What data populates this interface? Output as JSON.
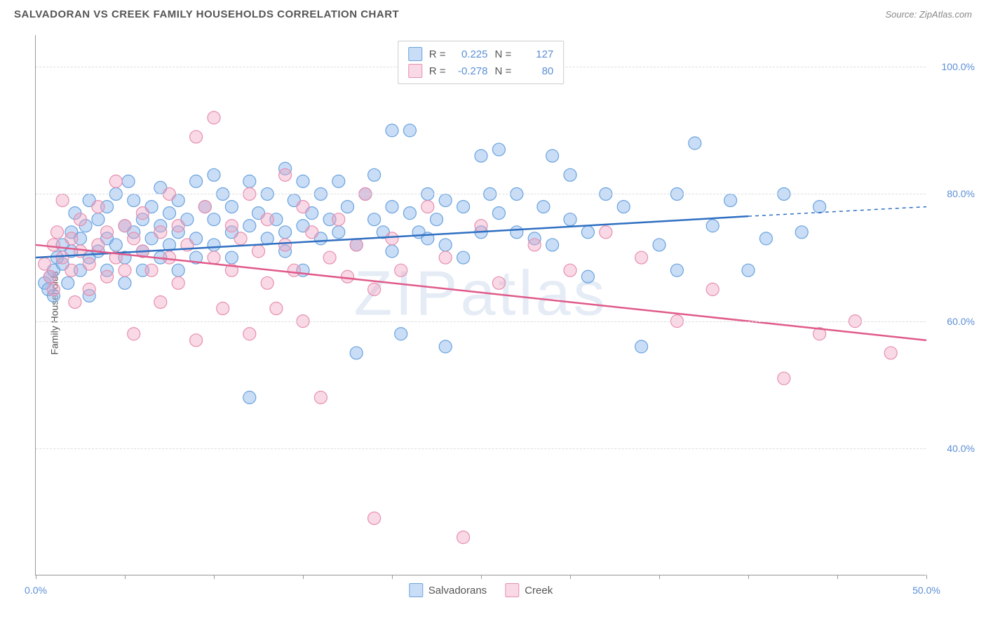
{
  "header": {
    "title": "SALVADORAN VS CREEK FAMILY HOUSEHOLDS CORRELATION CHART",
    "source": "Source: ZipAtlas.com"
  },
  "chart": {
    "type": "scatter",
    "watermark": "ZIPatlas",
    "y_label": "Family Households",
    "xlim": [
      0,
      50
    ],
    "ylim": [
      20,
      105
    ],
    "x_ticks_percent": [
      0,
      50
    ],
    "x_tick_labels": [
      "0.0%",
      "50.0%"
    ],
    "x_minor_ticks": [
      5,
      10,
      15,
      20,
      25,
      30,
      35,
      40,
      45
    ],
    "y_gridlines": [
      40,
      60,
      80,
      100
    ],
    "y_tick_labels": [
      "40.0%",
      "60.0%",
      "80.0%",
      "100.0%"
    ],
    "background_color": "#ffffff",
    "grid_color": "#dddddd",
    "axis_color": "#999999",
    "tick_label_color": "#5b8fd6",
    "marker_radius": 9,
    "marker_stroke_width": 1.2,
    "trend_line_width": 2.5,
    "series": [
      {
        "name": "Salvadorans",
        "fill_color": "rgba(135,180,235,0.45)",
        "stroke_color": "#6aa3de",
        "line_color": "#2f6fc1",
        "R": "0.225",
        "N": "127",
        "trend": {
          "x1": 0,
          "y1": 70,
          "x2": 40,
          "y2": 76.5,
          "dash_to_x": 50,
          "dash_to_y": 78
        },
        "points": [
          [
            0.5,
            66
          ],
          [
            0.7,
            65
          ],
          [
            0.8,
            67
          ],
          [
            1,
            68
          ],
          [
            1,
            64
          ],
          [
            1.2,
            70
          ],
          [
            1.5,
            72
          ],
          [
            1.5,
            69
          ],
          [
            1.8,
            66
          ],
          [
            2,
            71
          ],
          [
            2,
            74
          ],
          [
            2.2,
            77
          ],
          [
            2.5,
            68
          ],
          [
            2.5,
            73
          ],
          [
            2.8,
            75
          ],
          [
            3,
            70
          ],
          [
            3,
            79
          ],
          [
            3,
            64
          ],
          [
            3.5,
            76
          ],
          [
            3.5,
            71
          ],
          [
            4,
            73
          ],
          [
            4,
            68
          ],
          [
            4,
            78
          ],
          [
            4.5,
            80
          ],
          [
            4.5,
            72
          ],
          [
            5,
            75
          ],
          [
            5,
            70
          ],
          [
            5,
            66
          ],
          [
            5.2,
            82
          ],
          [
            5.5,
            74
          ],
          [
            5.5,
            79
          ],
          [
            6,
            76
          ],
          [
            6,
            71
          ],
          [
            6,
            68
          ],
          [
            6.5,
            73
          ],
          [
            6.5,
            78
          ],
          [
            7,
            81
          ],
          [
            7,
            75
          ],
          [
            7,
            70
          ],
          [
            7.5,
            77
          ],
          [
            7.5,
            72
          ],
          [
            8,
            74
          ],
          [
            8,
            79
          ],
          [
            8,
            68
          ],
          [
            8.5,
            76
          ],
          [
            9,
            82
          ],
          [
            9,
            73
          ],
          [
            9,
            70
          ],
          [
            9.5,
            78
          ],
          [
            10,
            83
          ],
          [
            10,
            76
          ],
          [
            10,
            72
          ],
          [
            10.5,
            80
          ],
          [
            11,
            74
          ],
          [
            11,
            78
          ],
          [
            11,
            70
          ],
          [
            12,
            82
          ],
          [
            12,
            75
          ],
          [
            12,
            48
          ],
          [
            12.5,
            77
          ],
          [
            13,
            73
          ],
          [
            13,
            80
          ],
          [
            13.5,
            76
          ],
          [
            14,
            84
          ],
          [
            14,
            74
          ],
          [
            14,
            71
          ],
          [
            14.5,
            79
          ],
          [
            15,
            82
          ],
          [
            15,
            75
          ],
          [
            15,
            68
          ],
          [
            15.5,
            77
          ],
          [
            16,
            80
          ],
          [
            16,
            73
          ],
          [
            16.5,
            76
          ],
          [
            17,
            74
          ],
          [
            17,
            82
          ],
          [
            17.5,
            78
          ],
          [
            18,
            72
          ],
          [
            18,
            55
          ],
          [
            18.5,
            80
          ],
          [
            19,
            76
          ],
          [
            19,
            83
          ],
          [
            19.5,
            74
          ],
          [
            20,
            78
          ],
          [
            20,
            71
          ],
          [
            20,
            90
          ],
          [
            20.5,
            58
          ],
          [
            21,
            77
          ],
          [
            21,
            90
          ],
          [
            21.5,
            74
          ],
          [
            22,
            80
          ],
          [
            22,
            73
          ],
          [
            22.5,
            76
          ],
          [
            23,
            56
          ],
          [
            23,
            79
          ],
          [
            23,
            72
          ],
          [
            24,
            78
          ],
          [
            24,
            70
          ],
          [
            25,
            86
          ],
          [
            25,
            74
          ],
          [
            25.5,
            80
          ],
          [
            26,
            77
          ],
          [
            26,
            87
          ],
          [
            27,
            74
          ],
          [
            27,
            80
          ],
          [
            28,
            73
          ],
          [
            28.5,
            78
          ],
          [
            29,
            86
          ],
          [
            29,
            72
          ],
          [
            30,
            83
          ],
          [
            30,
            76
          ],
          [
            31,
            74
          ],
          [
            31,
            67
          ],
          [
            32,
            80
          ],
          [
            33,
            78
          ],
          [
            34,
            56
          ],
          [
            35,
            72
          ],
          [
            36,
            80
          ],
          [
            36,
            68
          ],
          [
            37,
            88
          ],
          [
            38,
            75
          ],
          [
            39,
            79
          ],
          [
            40,
            68
          ],
          [
            41,
            73
          ],
          [
            42,
            80
          ],
          [
            43,
            74
          ],
          [
            44,
            78
          ]
        ]
      },
      {
        "name": "Creek",
        "fill_color": "rgba(240,160,190,0.4)",
        "stroke_color": "#e68fb0",
        "line_color": "#e05a8a",
        "R": "-0.278",
        "N": "80",
        "trend": {
          "x1": 0,
          "y1": 72,
          "x2": 50,
          "y2": 57
        },
        "points": [
          [
            0.5,
            69
          ],
          [
            0.8,
            67
          ],
          [
            1,
            72
          ],
          [
            1,
            65
          ],
          [
            1.2,
            74
          ],
          [
            1.5,
            70
          ],
          [
            1.5,
            79
          ],
          [
            2,
            68
          ],
          [
            2,
            73
          ],
          [
            2.2,
            63
          ],
          [
            2.5,
            76
          ],
          [
            2.5,
            71
          ],
          [
            3,
            69
          ],
          [
            3,
            65
          ],
          [
            3.5,
            78
          ],
          [
            3.5,
            72
          ],
          [
            4,
            67
          ],
          [
            4,
            74
          ],
          [
            4.5,
            70
          ],
          [
            4.5,
            82
          ],
          [
            5,
            68
          ],
          [
            5,
            75
          ],
          [
            5.5,
            73
          ],
          [
            5.5,
            58
          ],
          [
            6,
            71
          ],
          [
            6,
            77
          ],
          [
            6.5,
            68
          ],
          [
            7,
            74
          ],
          [
            7,
            63
          ],
          [
            7.5,
            80
          ],
          [
            7.5,
            70
          ],
          [
            8,
            75
          ],
          [
            8,
            66
          ],
          [
            8.5,
            72
          ],
          [
            9,
            89
          ],
          [
            9,
            57
          ],
          [
            9.5,
            78
          ],
          [
            10,
            70
          ],
          [
            10,
            92
          ],
          [
            10.5,
            62
          ],
          [
            11,
            75
          ],
          [
            11,
            68
          ],
          [
            11.5,
            73
          ],
          [
            12,
            80
          ],
          [
            12,
            58
          ],
          [
            12.5,
            71
          ],
          [
            13,
            76
          ],
          [
            13,
            66
          ],
          [
            13.5,
            62
          ],
          [
            14,
            83
          ],
          [
            14,
            72
          ],
          [
            14.5,
            68
          ],
          [
            15,
            78
          ],
          [
            15,
            60
          ],
          [
            15.5,
            74
          ],
          [
            16,
            48
          ],
          [
            16.5,
            70
          ],
          [
            17,
            76
          ],
          [
            17.5,
            67
          ],
          [
            18,
            72
          ],
          [
            18.5,
            80
          ],
          [
            19,
            65
          ],
          [
            19,
            29
          ],
          [
            20,
            73
          ],
          [
            20.5,
            68
          ],
          [
            22,
            78
          ],
          [
            23,
            70
          ],
          [
            24,
            26
          ],
          [
            25,
            75
          ],
          [
            26,
            66
          ],
          [
            28,
            72
          ],
          [
            30,
            68
          ],
          [
            32,
            74
          ],
          [
            34,
            70
          ],
          [
            36,
            60
          ],
          [
            38,
            65
          ],
          [
            42,
            51
          ],
          [
            44,
            58
          ],
          [
            46,
            60
          ],
          [
            48,
            55
          ]
        ]
      }
    ],
    "stats_box": {
      "r_label": "R =",
      "n_label": "N ="
    },
    "bottom_legend": {
      "items": [
        "Salvadorans",
        "Creek"
      ]
    }
  }
}
